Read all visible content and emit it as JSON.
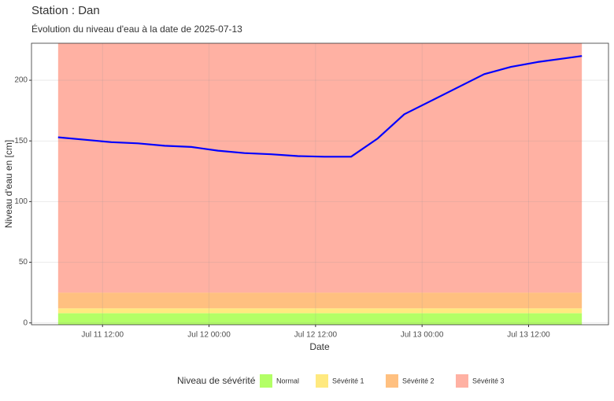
{
  "chart_data": {
    "type": "line",
    "title": "Station : Dan",
    "subtitle": "Évolution du niveau d'eau à la date de 2025-07-13",
    "x_label": "Date",
    "y_label": "Niveau d'eau en [cm]",
    "x": [
      "Jul 11 07:00",
      "Jul 11 10:00",
      "Jul 11 13:00",
      "Jul 11 16:00",
      "Jul 11 19:00",
      "Jul 11 22:00",
      "Jul 12 01:00",
      "Jul 12 04:00",
      "Jul 12 07:00",
      "Jul 12 10:00",
      "Jul 12 13:00",
      "Jul 12 16:00",
      "Jul 12 19:00",
      "Jul 12 22:00",
      "Jul 13 01:00",
      "Jul 13 04:00",
      "Jul 13 07:00",
      "Jul 13 10:00",
      "Jul 13 13:00",
      "Jul 13 16:00",
      "Jul 13 18:00"
    ],
    "series": [
      {
        "name": "Niveau",
        "color": "#0000ff",
        "values": [
          153,
          151,
          149,
          148,
          146,
          145,
          142,
          140,
          139,
          137.5,
          137,
          137,
          152,
          172,
          183,
          194,
          205,
          211,
          215,
          218,
          220
        ]
      }
    ],
    "xlim": [
      "Jul 11 04:00",
      "Jul 13 21:00"
    ],
    "xticks": [
      "Jul 11 12:00",
      "Jul 12 00:00",
      "Jul 12 12:00",
      "Jul 13 00:00",
      "Jul 13 12:00"
    ],
    "ylim": [
      -1.5,
      230.5
    ],
    "yticks": [
      0,
      50,
      100,
      150,
      200
    ],
    "grid": true,
    "legend_title": "Niveau de sévérité",
    "legend_position": "bottom",
    "bands": [
      {
        "name": "Normal",
        "color": "#b3ff66",
        "from": -1.5,
        "to": 8
      },
      {
        "name": "Sévérité 1",
        "color": "#ffe97f",
        "from": 8,
        "to": 12
      },
      {
        "name": "Sévérité 2",
        "color": "#ffc080",
        "from": 12,
        "to": 25
      },
      {
        "name": "Sévérité 3",
        "color": "#ffb1a3",
        "from": 25,
        "to": 230.5
      }
    ]
  }
}
